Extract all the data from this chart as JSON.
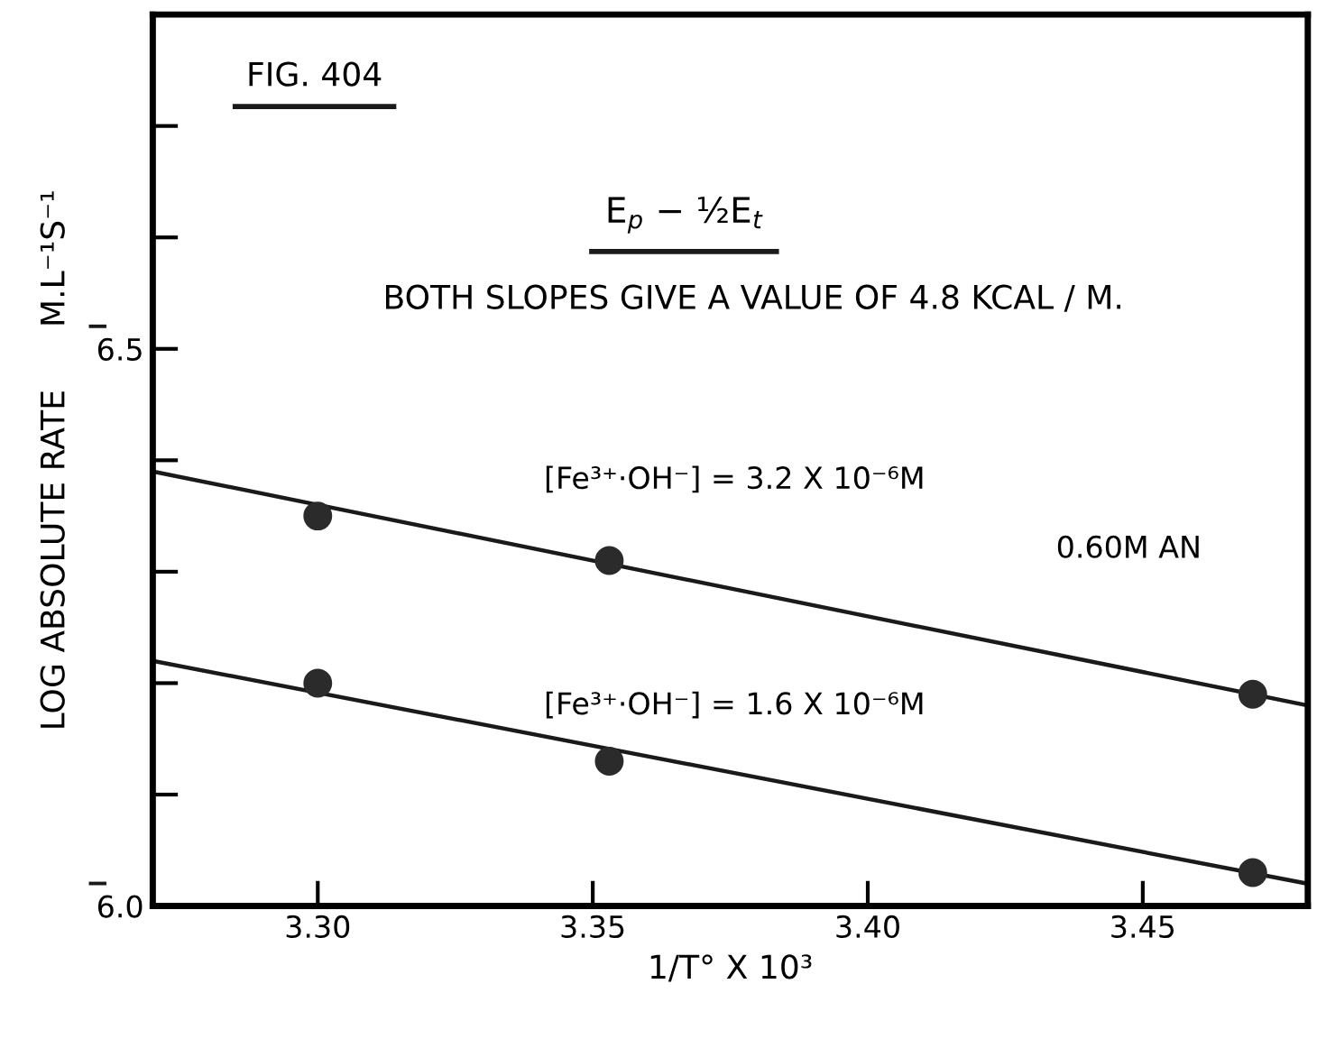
{
  "chart_data": {
    "type": "scatter",
    "title": "FIG. 404",
    "xlabel": "1/T° X 10³",
    "ylabel": "LOG ABSOLUTE RATE      M.L⁻¹S⁻¹",
    "annotations": [
      "E$_{p}$ − ½E$_{t}$",
      "BOTH SLOPES GIVE A VALUE OF 4.8 KCAL / M.",
      "0.60M AN"
    ],
    "series": [
      {
        "name": "[Fe³⁺·OH⁻] = 3.2 X 10⁻⁶M",
        "marker": "circle",
        "color": "#2b2b2b",
        "x": [
          3.3,
          3.353,
          3.47
        ],
        "values": [
          6.35,
          6.31,
          6.19
        ]
      },
      {
        "name": "[Fe³⁺·OH⁻] = 1.6 X 10⁻⁶M",
        "marker": "circle",
        "color": "#2b2b2b",
        "x": [
          3.3,
          3.353,
          3.47
        ],
        "values": [
          6.2,
          6.13,
          6.03
        ]
      },
      {
        "type": "line",
        "color": "#1a1a1a",
        "x": [
          3.27,
          3.48
        ],
        "values": [
          6.39,
          6.18
        ]
      },
      {
        "type": "line",
        "color": "#1a1a1a",
        "x": [
          3.27,
          3.48
        ],
        "values": [
          6.22,
          6.02
        ]
      }
    ],
    "xlim": [
      3.27,
      3.48
    ],
    "xticks": [
      {
        "value": 3.3,
        "label": "3.30"
      },
      {
        "value": 3.35,
        "label": "3.35"
      },
      {
        "value": 3.4,
        "label": "3.40"
      },
      {
        "value": 3.45,
        "label": "3.45"
      }
    ],
    "ylim": [
      6.0,
      6.8
    ],
    "yticks": [
      {
        "value": 6.0,
        "label": "6.0"
      },
      {
        "value": 6.1,
        "label": null
      },
      {
        "value": 6.2,
        "label": null
      },
      {
        "value": 6.3,
        "label": null
      },
      {
        "value": 6.4,
        "label": null
      },
      6.5,
      {
        "value": 6.6,
        "label": null
      },
      {
        "value": 6.7,
        "label": null
      }
    ],
    "grid": false,
    "legend": false,
    "line_style": "solid"
  }
}
